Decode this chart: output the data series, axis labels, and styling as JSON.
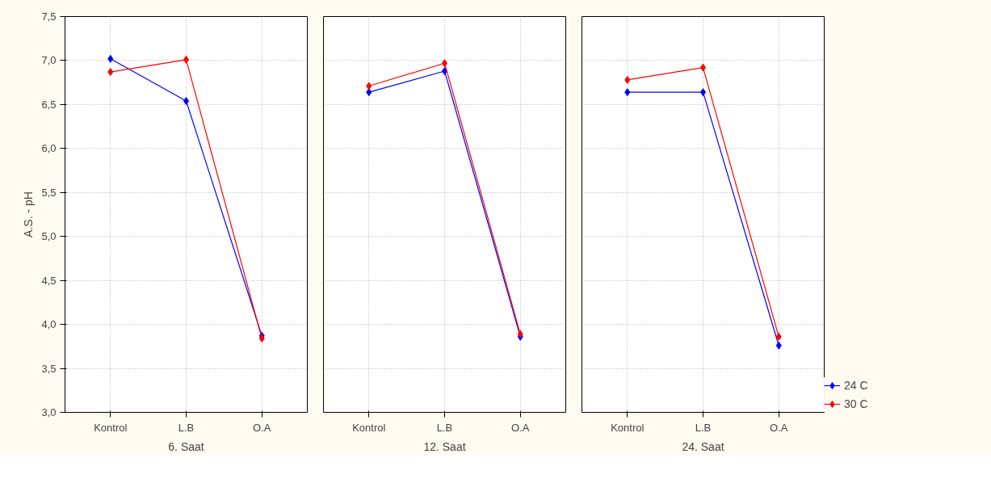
{
  "chart_data": [
    {
      "type": "line",
      "categories": [
        "Kontrol",
        "L.B",
        "O.A"
      ],
      "xlabel": "6. Saat",
      "ylabel": "A.S. - pH",
      "ylim": [
        3.0,
        7.5
      ],
      "yticks": [
        {
          "value": 3.0,
          "label": "3,0"
        },
        {
          "value": 3.5,
          "label": "3,5"
        },
        {
          "value": 4.0,
          "label": "4,0"
        },
        {
          "value": 4.5,
          "label": "4,5"
        },
        {
          "value": 5.0,
          "label": "5,0"
        },
        {
          "value": 5.5,
          "label": "5,5"
        },
        {
          "value": 6.0,
          "label": "6,0"
        },
        {
          "value": 6.5,
          "label": "6,5"
        },
        {
          "value": 7.0,
          "label": "7,0"
        },
        {
          "value": 7.5,
          "label": "7,5"
        }
      ],
      "grid": true,
      "marker": "diamond",
      "series": [
        {
          "color": "#0000ff",
          "values": [
            7.02,
            6.54,
            3.87
          ]
        },
        {
          "color": "#ff0000",
          "values": [
            6.87,
            7.01,
            3.84
          ]
        }
      ]
    },
    {
      "type": "line",
      "categories": [
        "Kontrol",
        "L.B",
        "O.A"
      ],
      "xlabel": "12. Saat",
      "ylim": [
        3.0,
        7.5
      ],
      "yticks": [
        {
          "value": 3.0,
          "label": null
        },
        {
          "value": 3.5,
          "label": null
        },
        {
          "value": 4.0,
          "label": null
        },
        {
          "value": 4.5,
          "label": null
        },
        {
          "value": 5.0,
          "label": null
        },
        {
          "value": 5.5,
          "label": null
        },
        {
          "value": 6.0,
          "label": null
        },
        {
          "value": 6.5,
          "label": null
        },
        {
          "value": 7.0,
          "label": null
        },
        {
          "value": 7.5,
          "label": null
        }
      ],
      "tick_labels": "x",
      "grid": true,
      "marker": "diamond",
      "series": [
        {
          "color": "#0000ff",
          "values": [
            6.64,
            6.88,
            3.86
          ]
        },
        {
          "color": "#ff0000",
          "values": [
            6.71,
            6.97,
            3.89
          ]
        }
      ]
    },
    {
      "type": "line",
      "categories": [
        "Kontrol",
        "L.B",
        "O.A"
      ],
      "xlabel": "24. Saat",
      "ylim": [
        3.0,
        7.5
      ],
      "yticks": [
        {
          "value": 3.0,
          "label": null
        },
        {
          "value": 3.5,
          "label": null
        },
        {
          "value": 4.0,
          "label": null
        },
        {
          "value": 4.5,
          "label": null
        },
        {
          "value": 5.0,
          "label": null
        },
        {
          "value": 5.5,
          "label": null
        },
        {
          "value": 6.0,
          "label": null
        },
        {
          "value": 6.5,
          "label": null
        },
        {
          "value": 7.0,
          "label": null
        },
        {
          "value": 7.5,
          "label": null
        }
      ],
      "tick_labels": "x",
      "grid": true,
      "marker": "diamond",
      "legend": "bottom right",
      "series": [
        {
          "name": "24 C",
          "color": "#0000ff",
          "values": [
            6.64,
            6.64,
            3.76
          ]
        },
        {
          "name": "30 C",
          "color": "#ff0000",
          "values": [
            6.78,
            6.92,
            3.86
          ]
        }
      ]
    }
  ]
}
